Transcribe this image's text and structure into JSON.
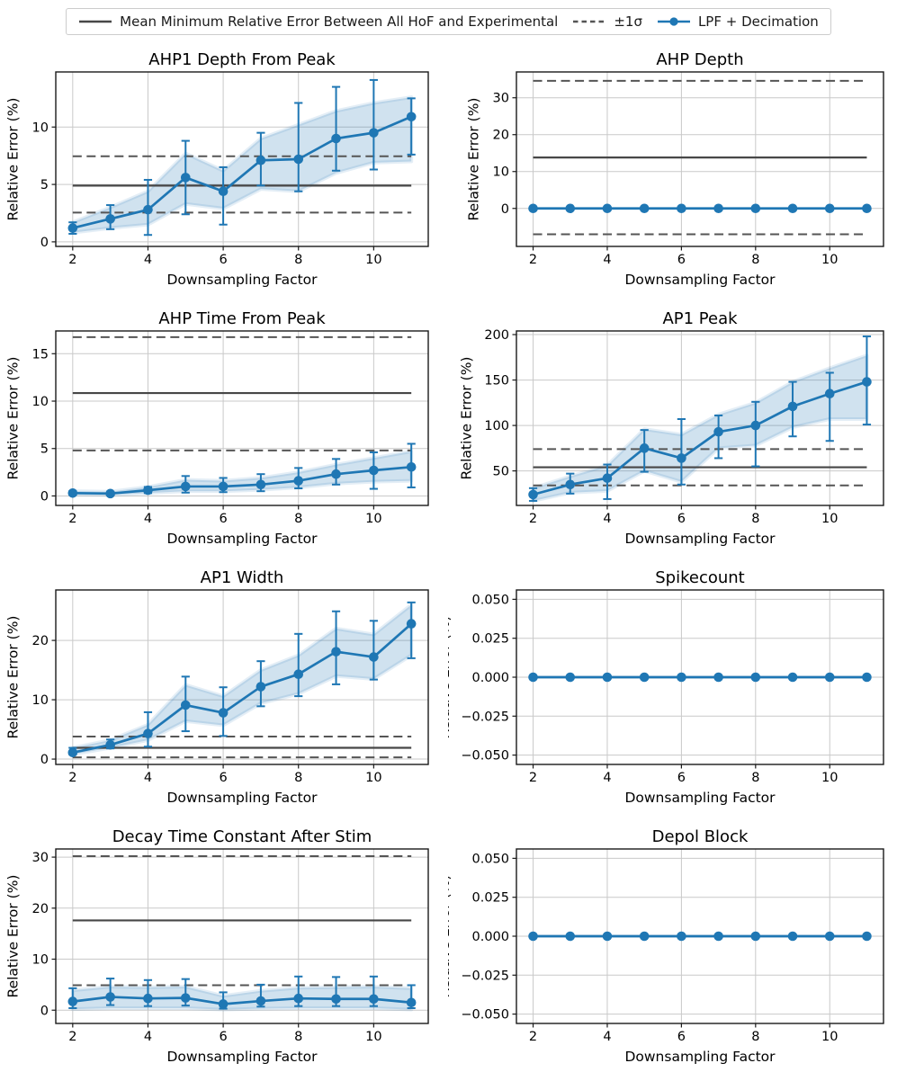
{
  "colors": {
    "series": "#1f77b4",
    "band_fill_opacity": 0.21,
    "band_edge_opacity": 0.12,
    "ref_solid": "#474747",
    "ref_dashed": "#555555",
    "grid": "#c9c9c9",
    "spine": "#1a1a1a",
    "text": "#000000",
    "legend_border": "#cccccc"
  },
  "legend": {
    "items": [
      {
        "label": "Mean Minimum Relative Error Between All HoF and Experimental",
        "style": "solid-line"
      },
      {
        "label": "±1σ",
        "style": "dashed-line"
      },
      {
        "label": "LPF + Decimation",
        "style": "line-with-marker"
      }
    ]
  },
  "chart_data": [
    {
      "type": "line",
      "slug": "ahp1-depth-from-peak",
      "title": "AHP1 Depth From Peak",
      "xlabel": "Downsampling Factor",
      "ylabel": "Relative Error (%)",
      "x": [
        2,
        3,
        4,
        5,
        6,
        7,
        8,
        9,
        10,
        11
      ],
      "y": [
        1.2,
        2.0,
        2.8,
        5.6,
        4.4,
        7.1,
        7.2,
        9.0,
        9.5,
        10.9
      ],
      "err_low": [
        0.7,
        1.1,
        0.6,
        2.4,
        1.5,
        4.9,
        4.4,
        6.2,
        6.3,
        7.6
      ],
      "err_high": [
        1.7,
        3.2,
        5.4,
        8.8,
        6.5,
        9.5,
        12.1,
        13.5,
        14.1,
        12.5
      ],
      "band_low": [
        0.8,
        1.2,
        1.5,
        3.3,
        2.9,
        4.6,
        4.4,
        6.0,
        6.9,
        7.0
      ],
      "band_high": [
        1.7,
        3.0,
        4.4,
        7.7,
        6.2,
        9.0,
        10.2,
        11.4,
        12.1,
        12.6
      ],
      "ref_mean": 4.9,
      "ref_sigma_upper": 7.45,
      "ref_sigma_lower": 2.55,
      "xlim": [
        1.55,
        11.45
      ],
      "ylim": [
        -0.4,
        14.8
      ],
      "xticks": [
        2,
        4,
        6,
        8,
        10
      ],
      "xtick_labels": [
        "2",
        "4",
        "6",
        "8",
        "10"
      ],
      "yticks": [
        0,
        5,
        10
      ],
      "ytick_labels": [
        "0",
        "5",
        "10"
      ],
      "grid": true
    },
    {
      "type": "line",
      "slug": "ahp-depth",
      "title": "AHP Depth",
      "xlabel": "Downsampling Factor",
      "ylabel": "Relative Error (%)",
      "x": [
        2,
        3,
        4,
        5,
        6,
        7,
        8,
        9,
        10,
        11
      ],
      "y": [
        0,
        0,
        0,
        0,
        0,
        0,
        0,
        0,
        0,
        0
      ],
      "err_low": [
        0,
        0,
        0,
        0,
        0,
        0,
        0,
        0,
        0,
        0
      ],
      "err_high": [
        0,
        0,
        0,
        0,
        0,
        0,
        0,
        0,
        0,
        0
      ],
      "band_low": [
        0,
        0,
        0,
        0,
        0,
        0,
        0,
        0,
        0,
        0
      ],
      "band_high": [
        0,
        0,
        0,
        0,
        0,
        0,
        0,
        0,
        0,
        0
      ],
      "ref_mean": 13.8,
      "ref_sigma_upper": 34.6,
      "ref_sigma_lower": -7.0,
      "xlim": [
        1.55,
        11.45
      ],
      "ylim": [
        -10.3,
        37.0
      ],
      "xticks": [
        2,
        4,
        6,
        8,
        10
      ],
      "xtick_labels": [
        "2",
        "4",
        "6",
        "8",
        "10"
      ],
      "yticks": [
        0,
        10,
        20,
        30
      ],
      "ytick_labels": [
        "0",
        "10",
        "20",
        "30"
      ],
      "grid": true
    },
    {
      "type": "line",
      "slug": "ahp-time-from-peak",
      "title": "AHP Time From Peak",
      "xlabel": "Downsampling Factor",
      "ylabel": "Relative Error (%)",
      "x": [
        2,
        3,
        4,
        5,
        6,
        7,
        8,
        9,
        10,
        11
      ],
      "y": [
        0.3,
        0.25,
        0.6,
        1.0,
        1.0,
        1.2,
        1.6,
        2.3,
        2.7,
        3.05
      ],
      "err_low": [
        0.15,
        0.1,
        0.3,
        0.35,
        0.4,
        0.5,
        0.8,
        1.2,
        0.75,
        0.9
      ],
      "err_high": [
        0.5,
        0.45,
        0.95,
        2.1,
        1.9,
        2.3,
        2.95,
        3.9,
        4.6,
        5.5
      ],
      "band_low": [
        0.15,
        0.1,
        0.3,
        0.5,
        0.5,
        0.65,
        0.9,
        1.3,
        1.5,
        1.6
      ],
      "band_high": [
        0.5,
        0.45,
        0.95,
        1.7,
        1.6,
        1.9,
        2.5,
        3.3,
        4.0,
        4.7
      ],
      "ref_mean": 10.85,
      "ref_sigma_upper": 16.75,
      "ref_sigma_lower": 4.8,
      "xlim": [
        1.55,
        11.45
      ],
      "ylim": [
        -1.0,
        17.4
      ],
      "xticks": [
        2,
        4,
        6,
        8,
        10
      ],
      "xtick_labels": [
        "2",
        "4",
        "6",
        "8",
        "10"
      ],
      "yticks": [
        0,
        5,
        10,
        15
      ],
      "ytick_labels": [
        "0",
        "5",
        "10",
        "15"
      ],
      "grid": true
    },
    {
      "type": "line",
      "slug": "ap1-peak",
      "title": "AP1 Peak",
      "xlabel": "Downsampling Factor",
      "ylabel": "Relative Error (%)",
      "x": [
        2,
        3,
        4,
        5,
        6,
        7,
        8,
        9,
        10,
        11
      ],
      "y": [
        24,
        35,
        42,
        75,
        64,
        93,
        100,
        121,
        135,
        148
      ],
      "err_low": [
        17,
        25,
        19,
        49,
        35,
        64,
        55,
        88,
        83,
        101
      ],
      "err_high": [
        31,
        47,
        57,
        95,
        107,
        111,
        126,
        148,
        158,
        198
      ],
      "band_low": [
        17,
        26,
        28,
        50,
        38,
        75,
        78,
        98,
        107,
        107
      ],
      "band_high": [
        31,
        44,
        56,
        96,
        90,
        112,
        125,
        148,
        163,
        177
      ],
      "ref_mean": 54,
      "ref_sigma_upper": 74,
      "ref_sigma_lower": 34,
      "xlim": [
        1.55,
        11.45
      ],
      "ylim": [
        12,
        204
      ],
      "xticks": [
        2,
        4,
        6,
        8,
        10
      ],
      "xtick_labels": [
        "2",
        "4",
        "6",
        "8",
        "10"
      ],
      "yticks": [
        50,
        100,
        150,
        200
      ],
      "ytick_labels": [
        "50",
        "100",
        "150",
        "200"
      ],
      "grid": true
    },
    {
      "type": "line",
      "slug": "ap1-width",
      "title": "AP1 Width",
      "xlabel": "Downsampling Factor",
      "ylabel": "Relative Error (%)",
      "x": [
        2,
        3,
        4,
        5,
        6,
        7,
        8,
        9,
        10,
        11
      ],
      "y": [
        1.1,
        2.4,
        4.3,
        9.1,
        7.8,
        12.2,
        14.3,
        18.1,
        17.2,
        22.8
      ],
      "err_low": [
        0.8,
        1.8,
        2.1,
        4.7,
        3.9,
        8.9,
        10.6,
        12.6,
        13.4,
        17.0
      ],
      "err_high": [
        1.9,
        3.3,
        7.9,
        13.9,
        12.1,
        16.5,
        21.1,
        24.9,
        23.3,
        26.4
      ],
      "band_low": [
        0.8,
        1.9,
        3.2,
        6.4,
        5.7,
        9.4,
        11.0,
        14.0,
        13.5,
        17.5
      ],
      "band_high": [
        1.9,
        3.2,
        5.8,
        12.5,
        10.6,
        15.0,
        17.5,
        22.0,
        21.0,
        26.0
      ],
      "ref_mean": 1.9,
      "ref_sigma_upper": 3.8,
      "ref_sigma_lower": 0.3,
      "xlim": [
        1.55,
        11.45
      ],
      "ylim": [
        -0.9,
        28.5
      ],
      "xticks": [
        2,
        4,
        6,
        8,
        10
      ],
      "xtick_labels": [
        "2",
        "4",
        "6",
        "8",
        "10"
      ],
      "yticks": [
        0,
        10,
        20
      ],
      "ytick_labels": [
        "0",
        "10",
        "20"
      ],
      "grid": true
    },
    {
      "type": "line",
      "slug": "spikecount",
      "title": "Spikecount",
      "xlabel": "Downsampling Factor",
      "ylabel": "Relative Error (%)",
      "x": [
        2,
        3,
        4,
        5,
        6,
        7,
        8,
        9,
        10,
        11
      ],
      "y": [
        0,
        0,
        0,
        0,
        0,
        0,
        0,
        0,
        0,
        0
      ],
      "err_low": [
        0,
        0,
        0,
        0,
        0,
        0,
        0,
        0,
        0,
        0
      ],
      "err_high": [
        0,
        0,
        0,
        0,
        0,
        0,
        0,
        0,
        0,
        0
      ],
      "band_low": [
        0,
        0,
        0,
        0,
        0,
        0,
        0,
        0,
        0,
        0
      ],
      "band_high": [
        0,
        0,
        0,
        0,
        0,
        0,
        0,
        0,
        0,
        0
      ],
      "ref_mean": 0,
      "ref_sigma_upper": 0,
      "ref_sigma_lower": 0,
      "xlim": [
        1.55,
        11.45
      ],
      "ylim": [
        -0.056,
        0.056
      ],
      "xticks": [
        2,
        4,
        6,
        8,
        10
      ],
      "xtick_labels": [
        "2",
        "4",
        "6",
        "8",
        "10"
      ],
      "yticks": [
        -0.05,
        -0.025,
        0,
        0.025,
        0.05
      ],
      "ytick_labels": [
        "−0.050",
        "−0.025",
        "0.000",
        "0.025",
        "0.050"
      ],
      "grid": true
    },
    {
      "type": "line",
      "slug": "decay-time-constant-after-stim",
      "title": "Decay Time Constant After Stim",
      "xlabel": "Downsampling Factor",
      "ylabel": "Relative Error (%)",
      "x": [
        2,
        3,
        4,
        5,
        6,
        7,
        8,
        9,
        10,
        11
      ],
      "y": [
        1.7,
        2.6,
        2.3,
        2.4,
        1.2,
        1.8,
        2.3,
        2.2,
        2.2,
        1.5
      ],
      "err_low": [
        0.4,
        1.0,
        0.8,
        0.9,
        0.3,
        0.7,
        0.8,
        0.8,
        0.8,
        0.4
      ],
      "err_high": [
        4.3,
        6.2,
        5.9,
        6.1,
        3.5,
        5.0,
        6.6,
        6.5,
        6.6,
        4.9
      ],
      "band_low": [
        0.2,
        0.4,
        0.4,
        0.4,
        0.1,
        0.3,
        0.4,
        0.4,
        0.4,
        0.1
      ],
      "band_high": [
        3.9,
        4.6,
        4.5,
        4.6,
        2.8,
        3.8,
        4.4,
        4.5,
        4.6,
        4.3
      ],
      "ref_mean": 17.6,
      "ref_sigma_upper": 30.2,
      "ref_sigma_lower": 4.9,
      "xlim": [
        1.55,
        11.45
      ],
      "ylim": [
        -2.6,
        31.6
      ],
      "xticks": [
        2,
        4,
        6,
        8,
        10
      ],
      "xtick_labels": [
        "2",
        "4",
        "6",
        "8",
        "10"
      ],
      "yticks": [
        0,
        10,
        20,
        30
      ],
      "ytick_labels": [
        "0",
        "10",
        "20",
        "30"
      ],
      "grid": true
    },
    {
      "type": "line",
      "slug": "depol-block",
      "title": "Depol Block",
      "xlabel": "Downsampling Factor",
      "ylabel": "Relative Error (%)",
      "x": [
        2,
        3,
        4,
        5,
        6,
        7,
        8,
        9,
        10,
        11
      ],
      "y": [
        0,
        0,
        0,
        0,
        0,
        0,
        0,
        0,
        0,
        0
      ],
      "err_low": [
        0,
        0,
        0,
        0,
        0,
        0,
        0,
        0,
        0,
        0
      ],
      "err_high": [
        0,
        0,
        0,
        0,
        0,
        0,
        0,
        0,
        0,
        0
      ],
      "band_low": [
        0,
        0,
        0,
        0,
        0,
        0,
        0,
        0,
        0,
        0
      ],
      "band_high": [
        0,
        0,
        0,
        0,
        0,
        0,
        0,
        0,
        0,
        0
      ],
      "ref_mean": 0,
      "ref_sigma_upper": 0,
      "ref_sigma_lower": 0,
      "xlim": [
        1.55,
        11.45
      ],
      "ylim": [
        -0.056,
        0.056
      ],
      "xticks": [
        2,
        4,
        6,
        8,
        10
      ],
      "xtick_labels": [
        "2",
        "4",
        "6",
        "8",
        "10"
      ],
      "yticks": [
        -0.05,
        -0.025,
        0,
        0.025,
        0.05
      ],
      "ytick_labels": [
        "−0.050",
        "−0.025",
        "0.000",
        "0.025",
        "0.050"
      ],
      "grid": true
    }
  ]
}
